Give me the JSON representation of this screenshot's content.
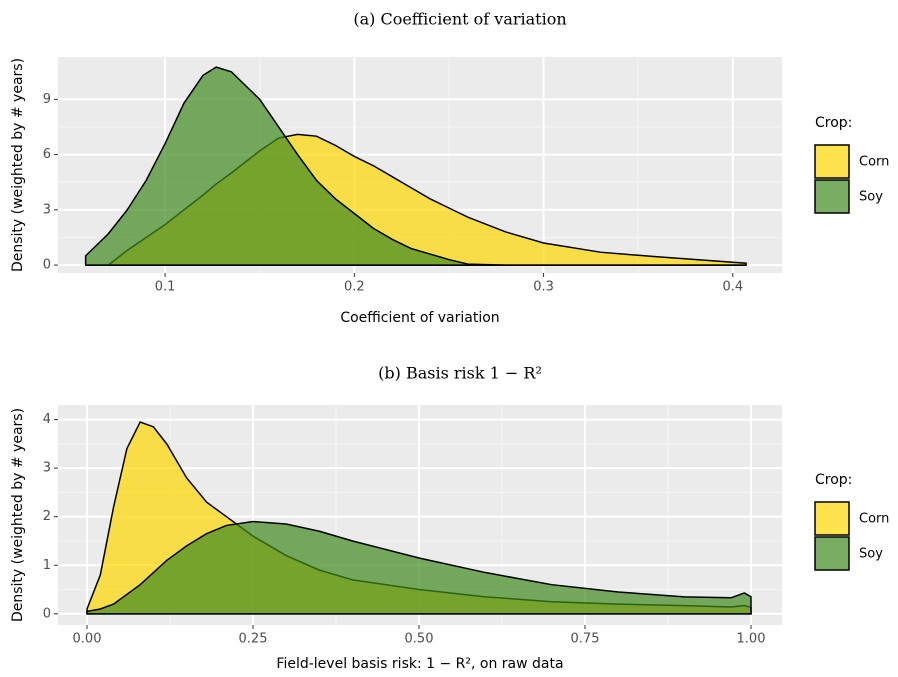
{
  "chart_data": [
    {
      "type": "area",
      "title": "(a) Coefficient of variation",
      "xlabel": "Coefficient of variation",
      "ylabel": "Density (weighted by # years)",
      "legend_title": "Crop:",
      "legend": "right",
      "grid": true,
      "x": [
        0.058,
        0.07,
        0.08,
        0.09,
        0.1,
        0.11,
        0.12,
        0.127,
        0.135,
        0.15,
        0.16,
        0.17,
        0.18,
        0.19,
        0.2,
        0.21,
        0.22,
        0.23,
        0.24,
        0.25,
        0.26,
        0.28,
        0.3,
        0.33,
        0.36,
        0.38,
        0.407
      ],
      "series": [
        {
          "name": "Corn",
          "color": "#ffd700",
          "values": [
            0,
            0,
            0.8,
            1.5,
            2.2,
            3.0,
            3.8,
            4.4,
            5.0,
            6.2,
            6.9,
            7.1,
            7.0,
            6.5,
            5.9,
            5.4,
            4.8,
            4.2,
            3.6,
            3.1,
            2.6,
            1.8,
            1.2,
            0.7,
            0.45,
            0.3,
            0.1
          ]
        },
        {
          "name": "Soy",
          "color": "#3f8a1f",
          "values": [
            0.5,
            1.7,
            3.0,
            4.6,
            6.6,
            8.8,
            10.3,
            10.75,
            10.5,
            9.0,
            7.5,
            6.0,
            4.6,
            3.6,
            2.8,
            2.0,
            1.4,
            0.9,
            0.6,
            0.3,
            0.05,
            0,
            0,
            0,
            0,
            0,
            0
          ]
        }
      ],
      "xlim": [
        0.0434,
        0.426
      ],
      "xticks": [
        0.1,
        0.2,
        0.3,
        0.4
      ],
      "ylim": [
        -0.43,
        11.3
      ],
      "yticks": [
        0,
        3,
        6,
        9
      ]
    },
    {
      "type": "area",
      "title": "(b) Basis risk 1 − R²",
      "xlabel": "Field-level basis risk: 1 − R², on raw data",
      "ylabel": "Density (weighted by # years)",
      "legend_title": "Crop:",
      "legend": "right",
      "grid": true,
      "x": [
        0,
        0.02,
        0.04,
        0.06,
        0.08,
        0.1,
        0.12,
        0.15,
        0.18,
        0.21,
        0.25,
        0.3,
        0.35,
        0.4,
        0.5,
        0.6,
        0.7,
        0.8,
        0.9,
        0.97,
        0.99,
        1.0
      ],
      "series": [
        {
          "name": "Corn",
          "color": "#ffd700",
          "values": [
            0.1,
            0.8,
            2.2,
            3.4,
            3.95,
            3.85,
            3.5,
            2.8,
            2.3,
            2.0,
            1.6,
            1.2,
            0.9,
            0.7,
            0.5,
            0.35,
            0.25,
            0.2,
            0.17,
            0.14,
            0.17,
            0.13
          ]
        },
        {
          "name": "Soy",
          "color": "#3f8a1f",
          "values": [
            0.05,
            0.1,
            0.2,
            0.4,
            0.6,
            0.85,
            1.1,
            1.4,
            1.65,
            1.82,
            1.9,
            1.85,
            1.7,
            1.5,
            1.15,
            0.85,
            0.6,
            0.45,
            0.35,
            0.33,
            0.43,
            0.35
          ]
        }
      ],
      "xlim": [
        -0.0437,
        1.0467
      ],
      "xticks": [
        {
          "value": 0,
          "label": "0.00"
        },
        {
          "value": 0.25,
          "label": "0.25"
        },
        {
          "value": 0.5,
          "label": "0.50"
        },
        {
          "value": 0.75,
          "label": "0.75"
        },
        {
          "value": 1,
          "label": "1.00"
        }
      ],
      "ylim": [
        -0.23,
        4.3
      ],
      "yticks": [
        0,
        1,
        2,
        3,
        4
      ]
    }
  ]
}
